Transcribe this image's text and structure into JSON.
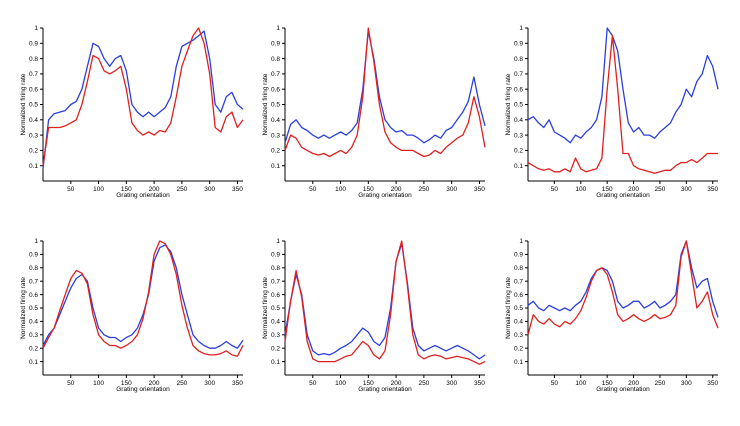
{
  "chart_data": [
    {
      "type": "line",
      "xlabel": "Grating orientation",
      "ylabel": "Normalized firing rate",
      "xlim": [
        0,
        360
      ],
      "ylim": [
        0,
        1
      ],
      "xticks": [
        50,
        100,
        150,
        200,
        250,
        300,
        350
      ],
      "yticks": [
        0.1,
        0.2,
        0.3,
        0.4,
        0.5,
        0.6,
        0.7,
        0.8,
        0.9,
        1
      ],
      "series": [
        {
          "color": "#2b3fe0",
          "x": [
            0,
            10,
            20,
            30,
            40,
            50,
            60,
            70,
            80,
            90,
            100,
            110,
            120,
            130,
            140,
            150,
            160,
            170,
            180,
            190,
            200,
            210,
            220,
            230,
            240,
            250,
            260,
            270,
            280,
            290,
            300,
            310,
            320,
            330,
            340,
            350,
            360
          ],
          "values": [
            0.08,
            0.4,
            0.44,
            0.45,
            0.46,
            0.5,
            0.52,
            0.6,
            0.75,
            0.9,
            0.88,
            0.8,
            0.75,
            0.8,
            0.82,
            0.72,
            0.5,
            0.45,
            0.42,
            0.45,
            0.42,
            0.45,
            0.48,
            0.55,
            0.75,
            0.88,
            0.9,
            0.92,
            0.95,
            0.98,
            0.8,
            0.5,
            0.45,
            0.55,
            0.58,
            0.5,
            0.47
          ]
        },
        {
          "color": "#e02020",
          "x": [
            0,
            10,
            20,
            30,
            40,
            50,
            60,
            70,
            80,
            90,
            100,
            110,
            120,
            130,
            140,
            150,
            160,
            170,
            180,
            190,
            200,
            210,
            220,
            230,
            240,
            250,
            260,
            270,
            280,
            290,
            300,
            310,
            320,
            330,
            340,
            350,
            360
          ],
          "values": [
            0.1,
            0.35,
            0.35,
            0.35,
            0.36,
            0.38,
            0.4,
            0.5,
            0.65,
            0.82,
            0.8,
            0.72,
            0.7,
            0.72,
            0.75,
            0.6,
            0.38,
            0.33,
            0.3,
            0.32,
            0.3,
            0.33,
            0.32,
            0.38,
            0.55,
            0.75,
            0.85,
            0.95,
            1.0,
            0.9,
            0.7,
            0.35,
            0.32,
            0.42,
            0.45,
            0.35,
            0.4
          ]
        }
      ]
    },
    {
      "type": "line",
      "xlabel": "Grating orientation",
      "ylabel": "Normalized firing rate",
      "xlim": [
        0,
        360
      ],
      "ylim": [
        0,
        1
      ],
      "xticks": [
        50,
        100,
        150,
        200,
        250,
        300,
        350
      ],
      "yticks": [
        0.1,
        0.2,
        0.3,
        0.4,
        0.5,
        0.6,
        0.7,
        0.8,
        0.9,
        1
      ],
      "series": [
        {
          "color": "#2b3fe0",
          "x": [
            0,
            10,
            20,
            30,
            40,
            50,
            60,
            70,
            80,
            90,
            100,
            110,
            120,
            130,
            140,
            150,
            160,
            170,
            180,
            190,
            200,
            210,
            220,
            230,
            240,
            250,
            260,
            270,
            280,
            290,
            300,
            310,
            320,
            330,
            340,
            350,
            360
          ],
          "values": [
            0.25,
            0.37,
            0.4,
            0.35,
            0.33,
            0.3,
            0.28,
            0.3,
            0.28,
            0.3,
            0.32,
            0.3,
            0.33,
            0.38,
            0.6,
            0.98,
            0.8,
            0.55,
            0.4,
            0.35,
            0.32,
            0.33,
            0.3,
            0.3,
            0.28,
            0.25,
            0.27,
            0.3,
            0.28,
            0.33,
            0.35,
            0.4,
            0.45,
            0.52,
            0.68,
            0.5,
            0.36
          ]
        },
        {
          "color": "#e02020",
          "x": [
            0,
            10,
            20,
            30,
            40,
            50,
            60,
            70,
            80,
            90,
            100,
            110,
            120,
            130,
            140,
            150,
            160,
            170,
            180,
            190,
            200,
            210,
            220,
            230,
            240,
            250,
            260,
            270,
            280,
            290,
            300,
            310,
            320,
            330,
            340,
            350,
            360
          ],
          "values": [
            0.2,
            0.3,
            0.28,
            0.22,
            0.2,
            0.18,
            0.17,
            0.18,
            0.16,
            0.18,
            0.2,
            0.18,
            0.22,
            0.3,
            0.55,
            1.0,
            0.78,
            0.5,
            0.32,
            0.25,
            0.22,
            0.2,
            0.2,
            0.2,
            0.18,
            0.16,
            0.17,
            0.2,
            0.18,
            0.22,
            0.25,
            0.28,
            0.3,
            0.38,
            0.55,
            0.42,
            0.22
          ]
        }
      ]
    },
    {
      "type": "line",
      "xlabel": "Grating orientation",
      "ylabel": "Normalized firing rate",
      "xlim": [
        0,
        360
      ],
      "ylim": [
        0,
        1
      ],
      "xticks": [
        50,
        100,
        150,
        200,
        250,
        300,
        350
      ],
      "yticks": [
        0.1,
        0.2,
        0.3,
        0.4,
        0.5,
        0.6,
        0.7,
        0.8,
        0.9,
        1
      ],
      "series": [
        {
          "color": "#2b3fe0",
          "x": [
            0,
            10,
            20,
            30,
            40,
            50,
            60,
            70,
            80,
            90,
            100,
            110,
            120,
            130,
            140,
            150,
            160,
            170,
            180,
            190,
            200,
            210,
            220,
            230,
            240,
            250,
            260,
            270,
            280,
            290,
            300,
            310,
            320,
            330,
            340,
            350,
            360
          ],
          "values": [
            0.4,
            0.42,
            0.38,
            0.35,
            0.4,
            0.32,
            0.3,
            0.28,
            0.25,
            0.3,
            0.28,
            0.32,
            0.35,
            0.4,
            0.55,
            1.0,
            0.95,
            0.85,
            0.6,
            0.38,
            0.32,
            0.35,
            0.3,
            0.3,
            0.28,
            0.32,
            0.35,
            0.38,
            0.45,
            0.5,
            0.6,
            0.55,
            0.65,
            0.7,
            0.82,
            0.75,
            0.6
          ]
        },
        {
          "color": "#e02020",
          "x": [
            0,
            10,
            20,
            30,
            40,
            50,
            60,
            70,
            80,
            90,
            100,
            110,
            120,
            130,
            140,
            150,
            160,
            170,
            180,
            190,
            200,
            210,
            220,
            230,
            240,
            250,
            260,
            270,
            280,
            290,
            300,
            310,
            320,
            330,
            340,
            350,
            360
          ],
          "values": [
            0.12,
            0.1,
            0.08,
            0.07,
            0.08,
            0.06,
            0.06,
            0.08,
            0.06,
            0.15,
            0.08,
            0.06,
            0.07,
            0.08,
            0.15,
            0.6,
            0.95,
            0.6,
            0.18,
            0.18,
            0.1,
            0.08,
            0.07,
            0.06,
            0.05,
            0.06,
            0.07,
            0.07,
            0.1,
            0.12,
            0.12,
            0.14,
            0.12,
            0.15,
            0.18,
            0.18,
            0.18
          ]
        }
      ]
    },
    {
      "type": "line",
      "xlabel": "Grating orientation",
      "ylabel": "Normalized firing rate",
      "xlim": [
        0,
        360
      ],
      "ylim": [
        0,
        1
      ],
      "xticks": [
        50,
        100,
        150,
        200,
        250,
        300,
        350
      ],
      "yticks": [
        0.1,
        0.2,
        0.3,
        0.4,
        0.5,
        0.6,
        0.7,
        0.8,
        0.9,
        1
      ],
      "series": [
        {
          "color": "#2b3fe0",
          "x": [
            0,
            10,
            20,
            30,
            40,
            50,
            60,
            70,
            80,
            90,
            100,
            110,
            120,
            130,
            140,
            150,
            160,
            170,
            180,
            190,
            200,
            210,
            220,
            230,
            240,
            250,
            260,
            270,
            280,
            290,
            300,
            310,
            320,
            330,
            340,
            350,
            360
          ],
          "values": [
            0.22,
            0.3,
            0.35,
            0.45,
            0.55,
            0.65,
            0.72,
            0.75,
            0.7,
            0.5,
            0.35,
            0.3,
            0.28,
            0.28,
            0.25,
            0.28,
            0.3,
            0.35,
            0.45,
            0.6,
            0.85,
            0.95,
            0.97,
            0.92,
            0.8,
            0.6,
            0.45,
            0.3,
            0.25,
            0.22,
            0.2,
            0.2,
            0.22,
            0.25,
            0.22,
            0.2,
            0.26
          ]
        },
        {
          "color": "#e02020",
          "x": [
            0,
            10,
            20,
            30,
            40,
            50,
            60,
            70,
            80,
            90,
            100,
            110,
            120,
            130,
            140,
            150,
            160,
            170,
            180,
            190,
            200,
            210,
            220,
            230,
            240,
            250,
            260,
            270,
            280,
            290,
            300,
            310,
            320,
            330,
            340,
            350,
            360
          ],
          "values": [
            0.2,
            0.28,
            0.35,
            0.48,
            0.6,
            0.72,
            0.78,
            0.76,
            0.68,
            0.45,
            0.3,
            0.25,
            0.22,
            0.22,
            0.2,
            0.22,
            0.25,
            0.3,
            0.42,
            0.62,
            0.9,
            1.0,
            0.98,
            0.9,
            0.75,
            0.52,
            0.35,
            0.22,
            0.18,
            0.16,
            0.15,
            0.15,
            0.16,
            0.18,
            0.15,
            0.14,
            0.22
          ]
        }
      ]
    },
    {
      "type": "line",
      "xlabel": "Grating orientation",
      "ylabel": "Normalized firing rate",
      "xlim": [
        0,
        360
      ],
      "ylim": [
        0,
        1
      ],
      "xticks": [
        50,
        100,
        150,
        200,
        250,
        300,
        350
      ],
      "yticks": [
        0.1,
        0.2,
        0.3,
        0.4,
        0.5,
        0.6,
        0.7,
        0.8,
        0.9,
        1
      ],
      "series": [
        {
          "color": "#2b3fe0",
          "x": [
            0,
            10,
            20,
            30,
            40,
            50,
            60,
            70,
            80,
            90,
            100,
            110,
            120,
            130,
            140,
            150,
            160,
            170,
            180,
            190,
            200,
            210,
            220,
            230,
            240,
            250,
            260,
            270,
            280,
            290,
            300,
            310,
            320,
            330,
            340,
            350,
            360
          ],
          "values": [
            0.3,
            0.55,
            0.75,
            0.6,
            0.3,
            0.18,
            0.15,
            0.16,
            0.15,
            0.17,
            0.2,
            0.22,
            0.25,
            0.3,
            0.35,
            0.32,
            0.25,
            0.22,
            0.28,
            0.5,
            0.85,
            0.98,
            0.7,
            0.35,
            0.22,
            0.18,
            0.2,
            0.22,
            0.2,
            0.18,
            0.2,
            0.22,
            0.2,
            0.18,
            0.15,
            0.12,
            0.15
          ]
        },
        {
          "color": "#e02020",
          "x": [
            0,
            10,
            20,
            30,
            40,
            50,
            60,
            70,
            80,
            90,
            100,
            110,
            120,
            130,
            140,
            150,
            160,
            170,
            180,
            190,
            200,
            210,
            220,
            230,
            240,
            250,
            260,
            270,
            280,
            290,
            300,
            310,
            320,
            330,
            340,
            350,
            360
          ],
          "values": [
            0.25,
            0.55,
            0.78,
            0.58,
            0.25,
            0.12,
            0.1,
            0.1,
            0.1,
            0.1,
            0.12,
            0.14,
            0.15,
            0.2,
            0.25,
            0.22,
            0.15,
            0.12,
            0.18,
            0.45,
            0.85,
            1.0,
            0.68,
            0.3,
            0.15,
            0.12,
            0.14,
            0.15,
            0.14,
            0.12,
            0.13,
            0.14,
            0.13,
            0.12,
            0.1,
            0.08,
            0.1
          ]
        }
      ]
    },
    {
      "type": "line",
      "xlabel": "Grating orientation",
      "ylabel": "Normalized firing rate",
      "xlim": [
        0,
        360
      ],
      "ylim": [
        0,
        1
      ],
      "xticks": [
        50,
        100,
        150,
        200,
        250,
        300,
        350
      ],
      "yticks": [
        0.1,
        0.2,
        0.3,
        0.4,
        0.5,
        0.6,
        0.7,
        0.8,
        0.9,
        1
      ],
      "series": [
        {
          "color": "#2b3fe0",
          "x": [
            0,
            10,
            20,
            30,
            40,
            50,
            60,
            70,
            80,
            90,
            100,
            110,
            120,
            130,
            140,
            150,
            160,
            170,
            180,
            190,
            200,
            210,
            220,
            230,
            240,
            250,
            260,
            270,
            280,
            290,
            300,
            310,
            320,
            330,
            340,
            350,
            360
          ],
          "values": [
            0.52,
            0.55,
            0.5,
            0.48,
            0.52,
            0.5,
            0.48,
            0.5,
            0.48,
            0.52,
            0.55,
            0.62,
            0.72,
            0.78,
            0.8,
            0.78,
            0.7,
            0.55,
            0.5,
            0.52,
            0.55,
            0.55,
            0.5,
            0.52,
            0.55,
            0.5,
            0.52,
            0.55,
            0.6,
            0.9,
            1.0,
            0.8,
            0.65,
            0.7,
            0.72,
            0.55,
            0.43
          ]
        },
        {
          "color": "#e02020",
          "x": [
            0,
            10,
            20,
            30,
            40,
            50,
            60,
            70,
            80,
            90,
            100,
            110,
            120,
            130,
            140,
            150,
            160,
            170,
            180,
            190,
            200,
            210,
            220,
            230,
            240,
            250,
            260,
            270,
            280,
            290,
            300,
            310,
            320,
            330,
            340,
            350,
            360
          ],
          "values": [
            0.3,
            0.45,
            0.4,
            0.38,
            0.42,
            0.38,
            0.36,
            0.4,
            0.38,
            0.42,
            0.48,
            0.58,
            0.7,
            0.78,
            0.8,
            0.75,
            0.62,
            0.45,
            0.4,
            0.42,
            0.45,
            0.42,
            0.4,
            0.42,
            0.45,
            0.42,
            0.43,
            0.45,
            0.52,
            0.88,
            1.0,
            0.75,
            0.5,
            0.55,
            0.62,
            0.45,
            0.35
          ]
        }
      ]
    }
  ]
}
